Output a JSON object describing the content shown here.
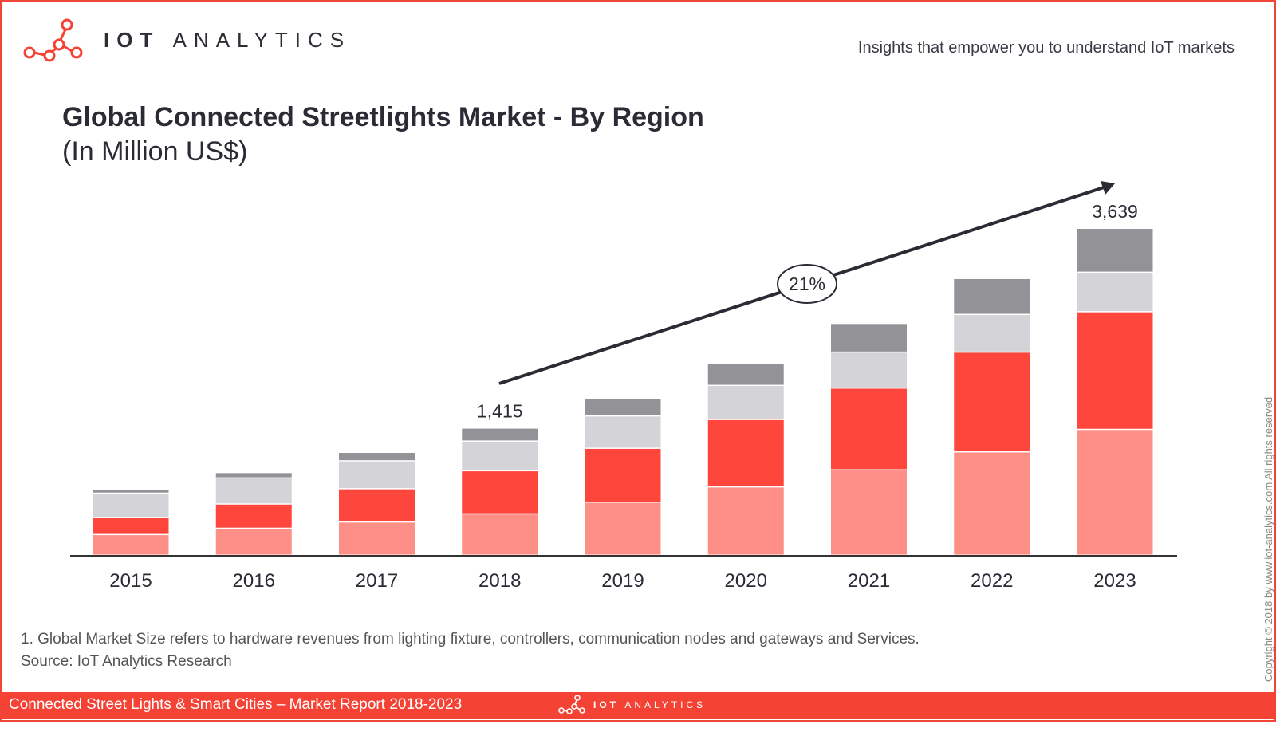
{
  "header": {
    "logo_bold": "IOT",
    "logo_light": "ANALYTICS",
    "tagline": "Insights that empower you to understand IoT markets"
  },
  "footer": {
    "note": "1. Global Market Size refers to hardware revenues from lighting fixture, controllers, communication nodes and gateways and Services.",
    "source": "Source: IoT Analytics Research",
    "copyright": "Copyright © 2018 by www.iot-analytics.com All rights reserved",
    "report_title": "Connected Street Lights & Smart Cities – Market Report 2018-2023",
    "logo_bold": "IOT",
    "logo_light": "ANALYTICS"
  },
  "colors": {
    "accent": "#f44234",
    "seg1": "#fd8f86",
    "seg2": "#fe463c",
    "seg3": "#d4d4d8",
    "seg4": "#939397",
    "text": "#2b2b36"
  },
  "chart_data": {
    "type": "bar",
    "stacked": true,
    "title": "Global Connected Streetlights Market - By Region",
    "subtitle": "(In Million US$)",
    "categories": [
      "2015",
      "2016",
      "2017",
      "2018",
      "2019",
      "2020",
      "2021",
      "2022",
      "2023"
    ],
    "series": [
      {
        "values": [
          230,
          300,
          370,
          460,
          590,
          760,
          950,
          1150,
          1400
        ]
      },
      {
        "values": [
          190,
          270,
          370,
          480,
          600,
          750,
          910,
          1110,
          1310
        ]
      },
      {
        "values": [
          270,
          290,
          310,
          330,
          360,
          380,
          400,
          420,
          440
        ]
      },
      {
        "values": [
          40,
          60,
          95,
          145,
          190,
          240,
          320,
          400,
          489
        ]
      }
    ],
    "totals_labels": {
      "2018": "1,415",
      "2023": "3,639"
    },
    "cagr_label": "21%",
    "ylim": [
      0,
      3639
    ],
    "legend": "none",
    "grid": false
  }
}
